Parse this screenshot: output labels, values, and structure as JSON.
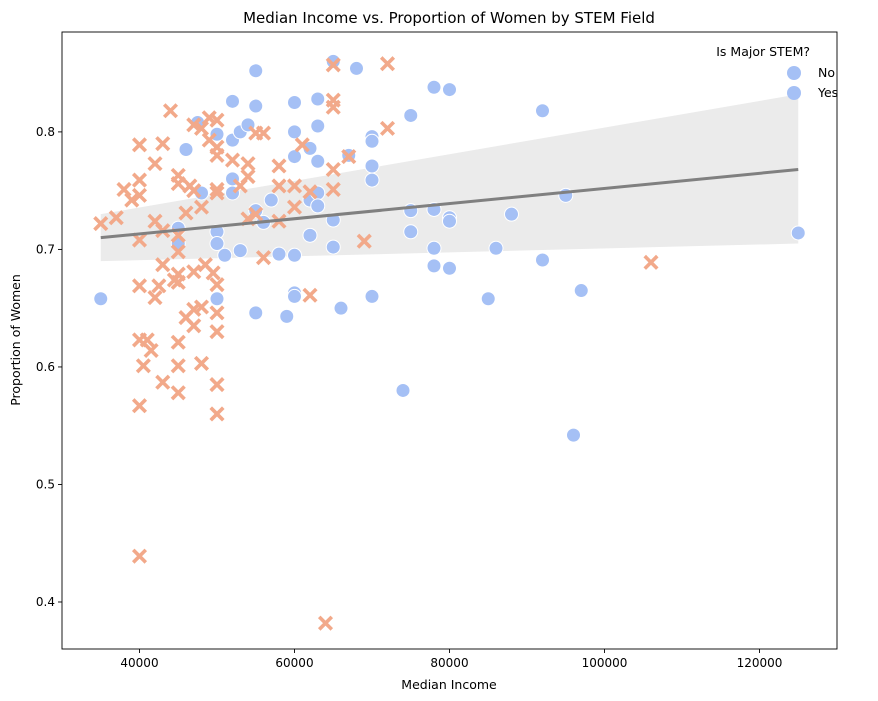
{
  "chart_data": {
    "type": "scatter",
    "title": "Median Income vs. Proportion of Women by STEM Field",
    "xlabel": "Median Income",
    "ylabel": "Proportion of Women",
    "xlim": [
      30000,
      130000
    ],
    "ylim": [
      0.36,
      0.885
    ],
    "xticks": [
      40000,
      60000,
      80000,
      100000,
      120000
    ],
    "yticks": [
      0.4,
      0.5,
      0.6,
      0.7,
      0.8
    ],
    "grid": false,
    "legend": {
      "title": "Is Major STEM?",
      "placement": "top-right",
      "entries": [
        "No",
        "Yes"
      ]
    },
    "colors": {
      "No": "#a5c0f5",
      "Yes": "#f2a98a",
      "regression_line": "#808080",
      "confidence_band": "#ebebeb"
    },
    "regression": {
      "x": [
        35000,
        125000
      ],
      "y": [
        0.71,
        0.768
      ],
      "band_lower": [
        0.69,
        0.705
      ],
      "band_upper": [
        0.73,
        0.832
      ]
    },
    "series": [
      {
        "name": "No",
        "marker": "circle",
        "points": [
          [
            35000,
            0.658
          ],
          [
            45000,
            0.718
          ],
          [
            45000,
            0.705
          ],
          [
            46000,
            0.785
          ],
          [
            47500,
            0.808
          ],
          [
            48000,
            0.748
          ],
          [
            50000,
            0.798
          ],
          [
            50000,
            0.715
          ],
          [
            50000,
            0.705
          ],
          [
            50000,
            0.658
          ],
          [
            51000,
            0.695
          ],
          [
            52000,
            0.826
          ],
          [
            52000,
            0.793
          ],
          [
            52000,
            0.76
          ],
          [
            52000,
            0.748
          ],
          [
            53000,
            0.8
          ],
          [
            53000,
            0.699
          ],
          [
            54000,
            0.806
          ],
          [
            55000,
            0.852
          ],
          [
            55000,
            0.822
          ],
          [
            55000,
            0.733
          ],
          [
            55000,
            0.646
          ],
          [
            56000,
            0.723
          ],
          [
            57000,
            0.742
          ],
          [
            58000,
            0.696
          ],
          [
            59000,
            0.643
          ],
          [
            60000,
            0.825
          ],
          [
            60000,
            0.8
          ],
          [
            60000,
            0.779
          ],
          [
            60000,
            0.695
          ],
          [
            60000,
            0.663
          ],
          [
            60000,
            0.66
          ],
          [
            62000,
            0.786
          ],
          [
            62000,
            0.742
          ],
          [
            62000,
            0.712
          ],
          [
            63000,
            0.828
          ],
          [
            63000,
            0.805
          ],
          [
            63000,
            0.775
          ],
          [
            63000,
            0.748
          ],
          [
            63000,
            0.737
          ],
          [
            65000,
            0.86
          ],
          [
            65000,
            0.725
          ],
          [
            65000,
            0.702
          ],
          [
            66000,
            0.65
          ],
          [
            67000,
            0.78
          ],
          [
            68000,
            0.854
          ],
          [
            70000,
            0.796
          ],
          [
            70000,
            0.792
          ],
          [
            70000,
            0.771
          ],
          [
            70000,
            0.759
          ],
          [
            70000,
            0.66
          ],
          [
            74000,
            0.58
          ],
          [
            75000,
            0.814
          ],
          [
            75000,
            0.733
          ],
          [
            75000,
            0.715
          ],
          [
            78000,
            0.838
          ],
          [
            78000,
            0.734
          ],
          [
            78000,
            0.701
          ],
          [
            78000,
            0.686
          ],
          [
            80000,
            0.836
          ],
          [
            80000,
            0.727
          ],
          [
            80000,
            0.724
          ],
          [
            80000,
            0.684
          ],
          [
            85000,
            0.658
          ],
          [
            86000,
            0.701
          ],
          [
            88000,
            0.73
          ],
          [
            92000,
            0.818
          ],
          [
            92000,
            0.691
          ],
          [
            95000,
            0.746
          ],
          [
            96000,
            0.542
          ],
          [
            97000,
            0.665
          ],
          [
            125000,
            0.714
          ]
        ]
      },
      {
        "name": "Yes",
        "marker": "x",
        "points": [
          [
            35000,
            0.722
          ],
          [
            37000,
            0.727
          ],
          [
            38000,
            0.751
          ],
          [
            39000,
            0.742
          ],
          [
            40000,
            0.789
          ],
          [
            40000,
            0.759
          ],
          [
            40000,
            0.746
          ],
          [
            40000,
            0.708
          ],
          [
            40000,
            0.669
          ],
          [
            40000,
            0.623
          ],
          [
            40000,
            0.567
          ],
          [
            40000,
            0.439
          ],
          [
            40500,
            0.601
          ],
          [
            41000,
            0.623
          ],
          [
            41500,
            0.614
          ],
          [
            42000,
            0.773
          ],
          [
            42000,
            0.724
          ],
          [
            42000,
            0.659
          ],
          [
            42500,
            0.669
          ],
          [
            43000,
            0.79
          ],
          [
            43000,
            0.716
          ],
          [
            43000,
            0.687
          ],
          [
            43000,
            0.587
          ],
          [
            44000,
            0.818
          ],
          [
            44500,
            0.674
          ],
          [
            45000,
            0.763
          ],
          [
            45000,
            0.756
          ],
          [
            45000,
            0.712
          ],
          [
            45000,
            0.698
          ],
          [
            45000,
            0.679
          ],
          [
            45000,
            0.672
          ],
          [
            45000,
            0.621
          ],
          [
            45000,
            0.601
          ],
          [
            45000,
            0.578
          ],
          [
            46000,
            0.731
          ],
          [
            46000,
            0.642
          ],
          [
            46500,
            0.754
          ],
          [
            47000,
            0.806
          ],
          [
            47000,
            0.75
          ],
          [
            47000,
            0.681
          ],
          [
            47000,
            0.649
          ],
          [
            47000,
            0.635
          ],
          [
            48000,
            0.803
          ],
          [
            48000,
            0.736
          ],
          [
            48000,
            0.651
          ],
          [
            48000,
            0.603
          ],
          [
            48500,
            0.687
          ],
          [
            49000,
            0.812
          ],
          [
            49000,
            0.793
          ],
          [
            49500,
            0.68
          ],
          [
            50000,
            0.81
          ],
          [
            50000,
            0.787
          ],
          [
            50000,
            0.78
          ],
          [
            50000,
            0.751
          ],
          [
            50000,
            0.748
          ],
          [
            50000,
            0.67
          ],
          [
            50000,
            0.646
          ],
          [
            50000,
            0.63
          ],
          [
            50000,
            0.585
          ],
          [
            50000,
            0.56
          ],
          [
            52000,
            0.776
          ],
          [
            53000,
            0.754
          ],
          [
            54000,
            0.773
          ],
          [
            54000,
            0.762
          ],
          [
            54000,
            0.726
          ],
          [
            55000,
            0.799
          ],
          [
            55000,
            0.73
          ],
          [
            56000,
            0.799
          ],
          [
            56000,
            0.693
          ],
          [
            58000,
            0.771
          ],
          [
            58000,
            0.754
          ],
          [
            58000,
            0.724
          ],
          [
            60000,
            0.754
          ],
          [
            60000,
            0.736
          ],
          [
            61000,
            0.789
          ],
          [
            62000,
            0.749
          ],
          [
            62000,
            0.661
          ],
          [
            64000,
            0.382
          ],
          [
            65000,
            0.857
          ],
          [
            65000,
            0.827
          ],
          [
            65000,
            0.821
          ],
          [
            65000,
            0.768
          ],
          [
            65000,
            0.751
          ],
          [
            67000,
            0.779
          ],
          [
            69000,
            0.707
          ],
          [
            72000,
            0.858
          ],
          [
            72000,
            0.803
          ],
          [
            106000,
            0.689
          ]
        ]
      }
    ]
  }
}
